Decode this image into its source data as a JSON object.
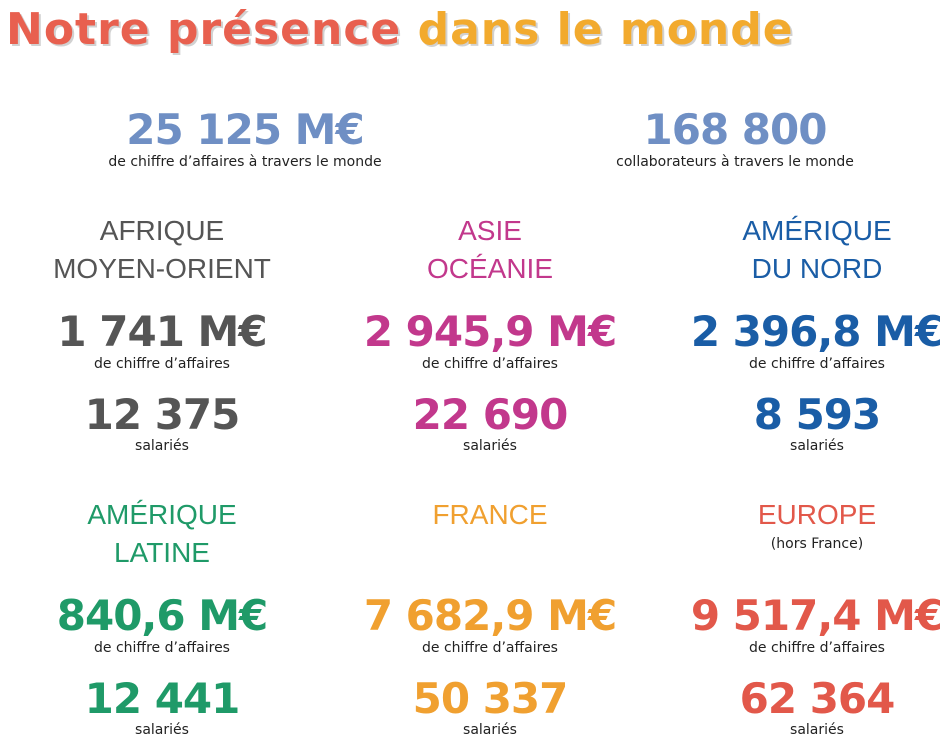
{
  "title": [
    {
      "text": "Notre présence",
      "color": "#e8604f"
    },
    {
      "text": "dans le monde",
      "color": "#f2aa2e"
    }
  ],
  "summary": {
    "color": "#6f8fc4",
    "items": [
      {
        "value": "25 125 M€",
        "label": "de chiffre d’affaires à travers le monde"
      },
      {
        "value": "168 800",
        "label": "collaborateurs à travers le monde"
      }
    ]
  },
  "regions": [
    {
      "name": [
        "AFRIQUE",
        "MOYEN-ORIENT"
      ],
      "color": "#555555",
      "revenue": "1 741 M€",
      "revenue_label": "de chiffre d’affaires",
      "employees": "12 375",
      "employees_label": "salariés"
    },
    {
      "name": [
        "ASIE",
        "OCÉANIE"
      ],
      "color": "#c2388c",
      "revenue": "2 945,9 M€",
      "revenue_label": "de chiffre d’affaires",
      "employees": "22 690",
      "employees_label": "salariés"
    },
    {
      "name": [
        "AMÉRIQUE",
        "DU NORD"
      ],
      "color": "#1a5da6",
      "revenue": "2 396,8 M€",
      "revenue_label": "de chiffre d’affaires",
      "employees": "8 593",
      "employees_label": "salariés"
    },
    {
      "name": [
        "AMÉRIQUE",
        "LATINE"
      ],
      "color": "#1f9a68",
      "revenue": "840,6 M€",
      "revenue_label": "de chiffre d’affaires",
      "employees": "12 441",
      "employees_label": "salariés"
    },
    {
      "name": [
        "FRANCE"
      ],
      "color": "#f0a030",
      "revenue": "7 682,9 M€",
      "revenue_label": "de chiffre d’affaires",
      "employees": "50 337",
      "employees_label": "salariés"
    },
    {
      "name": [
        "EUROPE"
      ],
      "note": "(hors France)",
      "color": "#e2584a",
      "revenue": "9 517,4 M€",
      "revenue_label": "de chiffre d’affaires",
      "employees": "62 364",
      "employees_label": "salariés"
    }
  ]
}
